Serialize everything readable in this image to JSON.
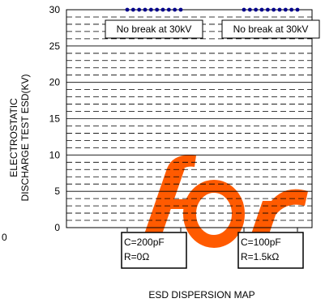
{
  "chart_data": {
    "type": "scatter",
    "title": "",
    "xlabel": "ESD DISPERSION MAP",
    "ylabel_lines": [
      "ELECTROSTATIC",
      "DISCHARGE TEST ESD(KV)"
    ],
    "ylim": [
      0,
      30
    ],
    "y_ticks": [
      0,
      5,
      10,
      15,
      20,
      25,
      30
    ],
    "grid": "dashed minor every 1 kV, solid major every 5 kV",
    "left_edge_label": "0",
    "colors": {
      "points": "#00008b",
      "axis": "#000000",
      "watermark": "#ff5a00"
    },
    "watermark": "for",
    "groups": [
      {
        "annotation": "No break at 30kV",
        "condition_lines": [
          "C=200pF",
          "R=0Ω"
        ],
        "y_value": 30,
        "n_points": 10
      },
      {
        "annotation": "No break at 30kV",
        "condition_lines": [
          "C=100pF",
          "R=1.5kΩ"
        ],
        "y_value": 30,
        "n_points": 10
      }
    ]
  }
}
